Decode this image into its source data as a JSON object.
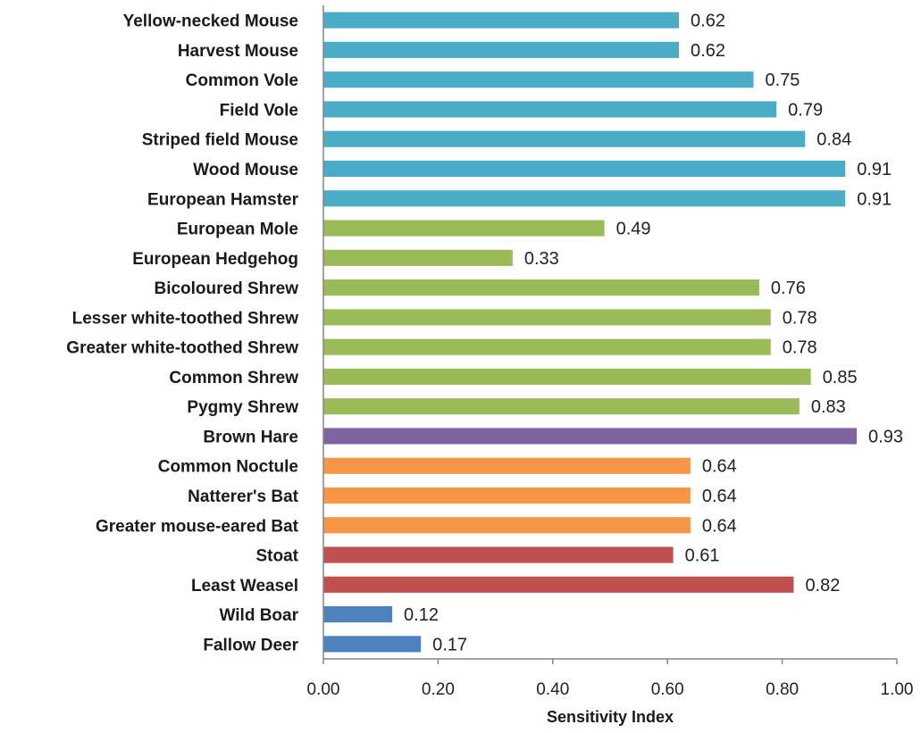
{
  "chart_data": {
    "type": "bar",
    "orientation": "horizontal",
    "xlabel": "Sensitivity Index",
    "ylabel": "",
    "xlim": [
      0,
      1
    ],
    "x_ticks": [
      "0.00",
      "0.20",
      "0.40",
      "0.60",
      "0.80",
      "1.00"
    ],
    "grid": false,
    "legend": "none",
    "bars": [
      {
        "label": "Yellow-necked Mouse",
        "value": 0.62,
        "value_label": "0.62",
        "color": "#4BACC6"
      },
      {
        "label": "Harvest Mouse",
        "value": 0.62,
        "value_label": "0.62",
        "color": "#4BACC6"
      },
      {
        "label": "Common Vole",
        "value": 0.75,
        "value_label": "0.75",
        "color": "#4BACC6"
      },
      {
        "label": "Field Vole",
        "value": 0.79,
        "value_label": "0.79",
        "color": "#4BACC6"
      },
      {
        "label": "Striped field Mouse",
        "value": 0.84,
        "value_label": "0.84",
        "color": "#4BACC6"
      },
      {
        "label": "Wood Mouse",
        "value": 0.91,
        "value_label": "0.91",
        "color": "#4BACC6"
      },
      {
        "label": "European Hamster",
        "value": 0.91,
        "value_label": "0.91",
        "color": "#4BACC6"
      },
      {
        "label": "European Mole",
        "value": 0.49,
        "value_label": "0.49",
        "color": "#9BBB59"
      },
      {
        "label": "European Hedgehog",
        "value": 0.33,
        "value_label": "0.33",
        "color": "#9BBB59"
      },
      {
        "label": "Bicoloured Shrew",
        "value": 0.76,
        "value_label": "0.76",
        "color": "#9BBB59"
      },
      {
        "label": "Lesser white-toothed Shrew",
        "value": 0.78,
        "value_label": "0.78",
        "color": "#9BBB59"
      },
      {
        "label": "Greater white-toothed Shrew",
        "value": 0.78,
        "value_label": "0.78",
        "color": "#9BBB59"
      },
      {
        "label": "Common Shrew",
        "value": 0.85,
        "value_label": "0.85",
        "color": "#9BBB59"
      },
      {
        "label": "Pygmy Shrew",
        "value": 0.83,
        "value_label": "0.83",
        "color": "#9BBB59"
      },
      {
        "label": "Brown Hare",
        "value": 0.93,
        "value_label": "0.93",
        "color": "#8064A2"
      },
      {
        "label": "Common Noctule",
        "value": 0.64,
        "value_label": "0.64",
        "color": "#F79646"
      },
      {
        "label": "Natterer's Bat",
        "value": 0.64,
        "value_label": "0.64",
        "color": "#F79646"
      },
      {
        "label": "Greater mouse-eared Bat",
        "value": 0.64,
        "value_label": "0.64",
        "color": "#F79646"
      },
      {
        "label": "Stoat",
        "value": 0.61,
        "value_label": "0.61",
        "color": "#C0504D"
      },
      {
        "label": "Least Weasel",
        "value": 0.82,
        "value_label": "0.82",
        "color": "#C0504D"
      },
      {
        "label": "Wild Boar",
        "value": 0.12,
        "value_label": "0.12",
        "color": "#4F81BD"
      },
      {
        "label": "Fallow Deer",
        "value": 0.17,
        "value_label": "0.17",
        "color": "#4F81BD"
      }
    ]
  }
}
